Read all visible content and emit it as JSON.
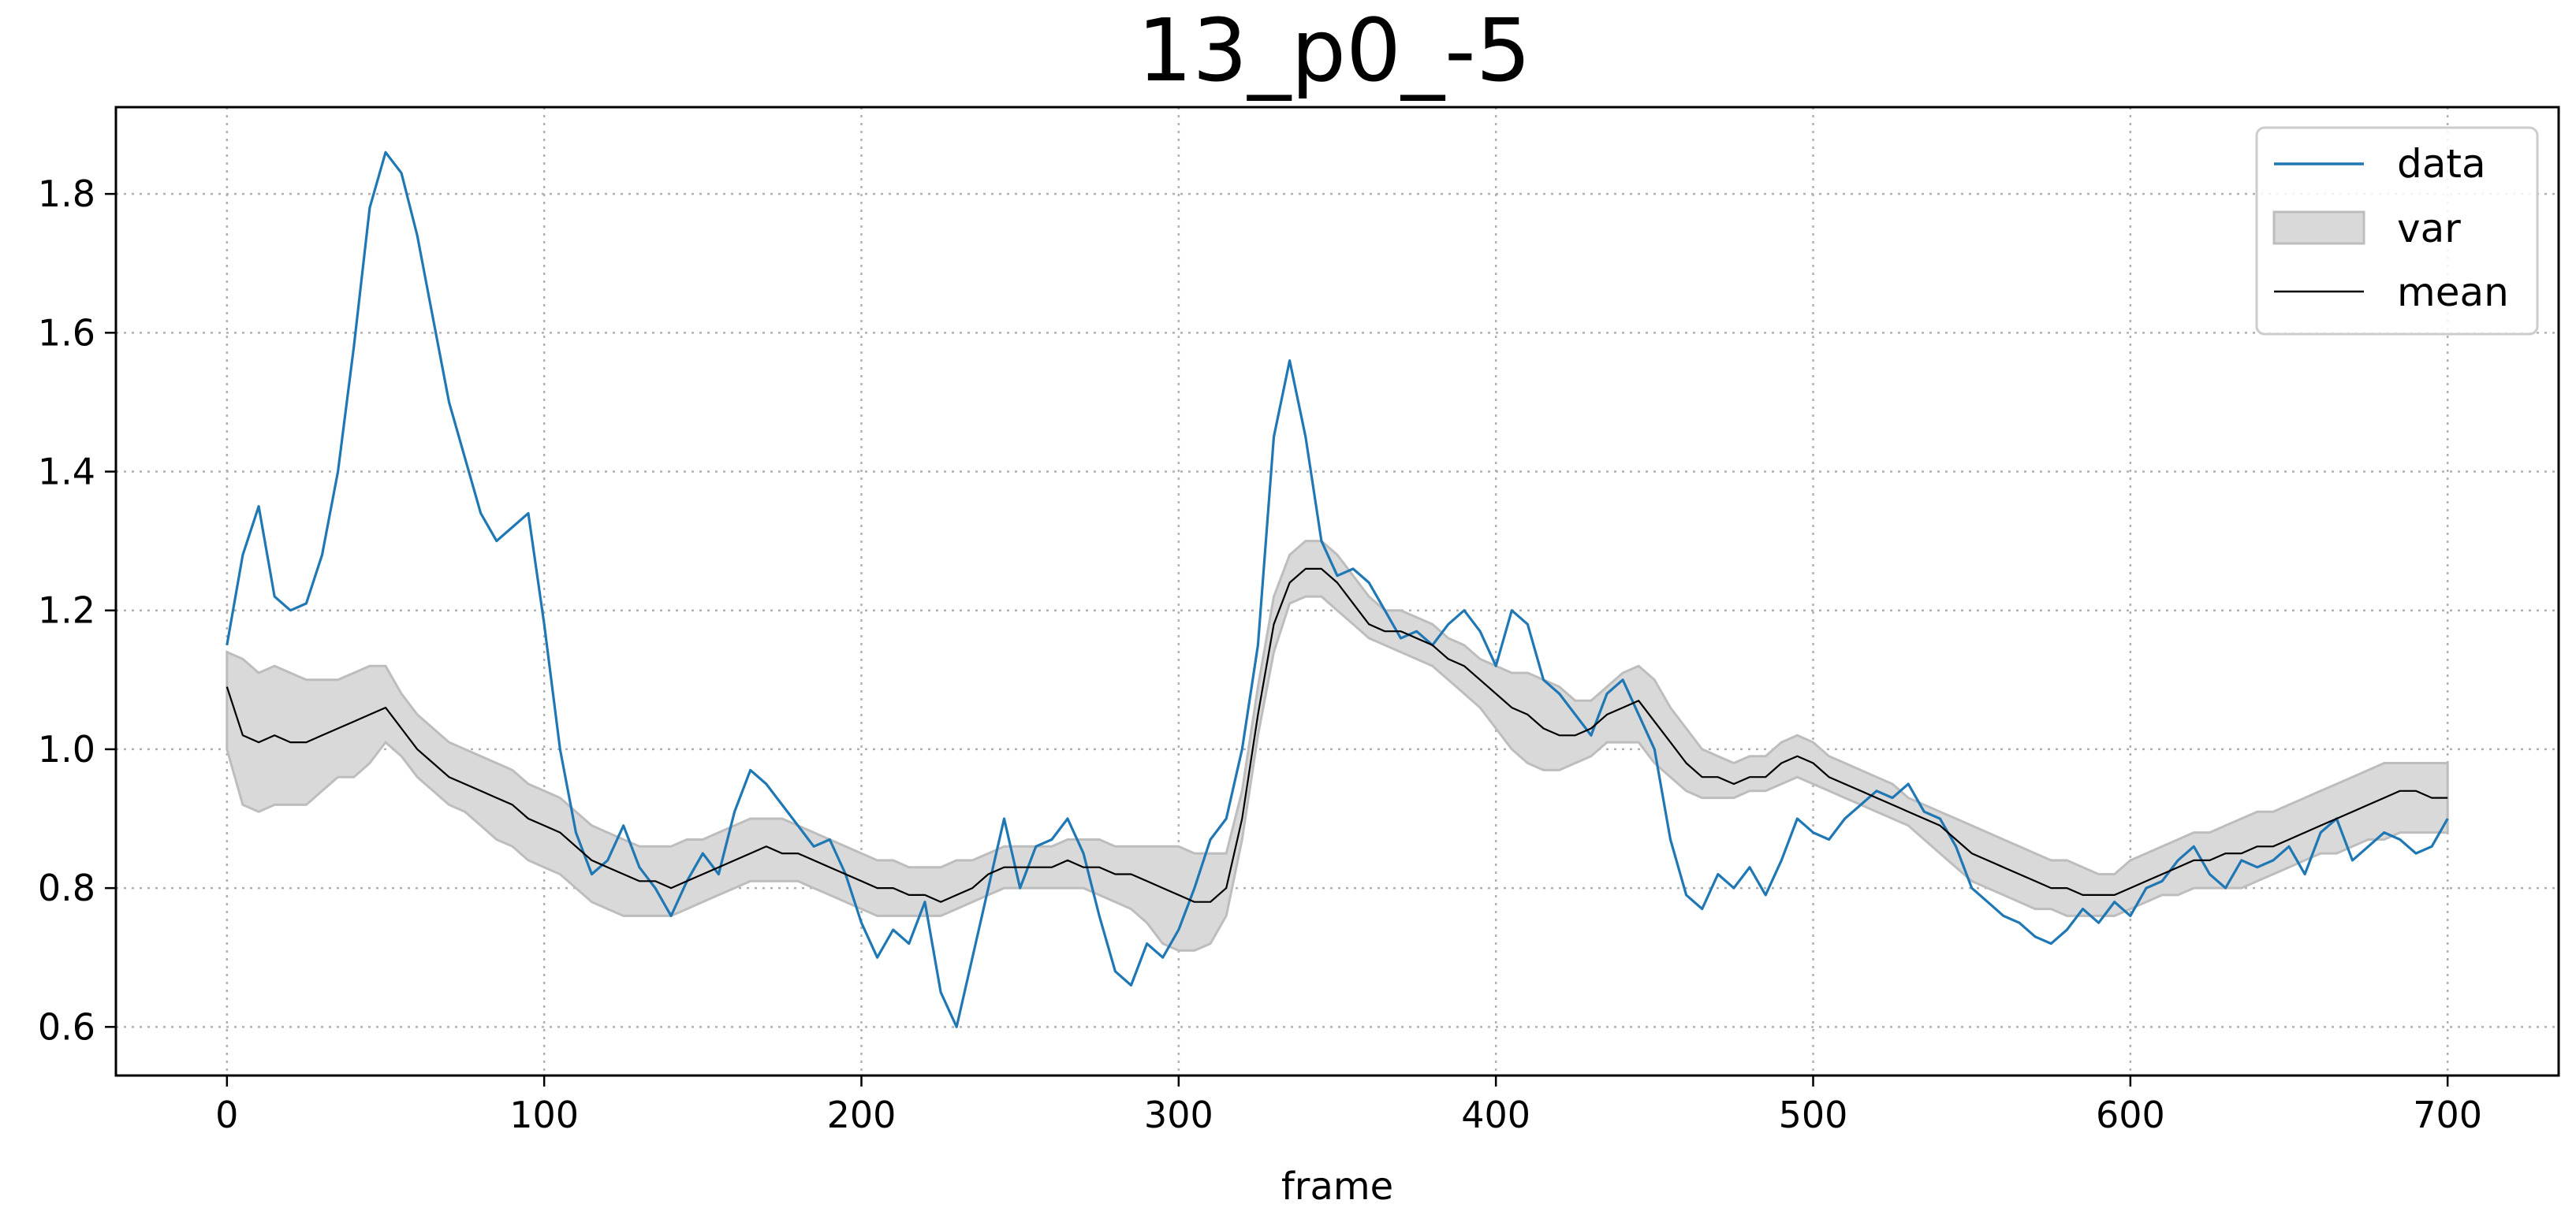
{
  "chart_data": {
    "type": "line",
    "title": "13_p0_-5",
    "xlabel": "frame",
    "ylabel": "",
    "xlim": [
      -35,
      735
    ],
    "ylim": [
      0.53,
      1.925
    ],
    "xticks": [
      0,
      100,
      200,
      300,
      400,
      500,
      600,
      700
    ],
    "yticks": [
      0.6,
      0.8,
      1.0,
      1.2,
      1.4,
      1.6,
      1.8
    ],
    "ytick_labels": [
      "0.6",
      "0.8",
      "1.0",
      "1.2",
      "1.4",
      "1.6",
      "1.8"
    ],
    "grid": true,
    "legend_position": "top-right",
    "legend": [
      "data",
      "var",
      "mean"
    ],
    "colors": {
      "data": "#1f77b4",
      "mean": "#000000",
      "var_fill": "#d9d9d9",
      "var_edge": "#bdbdbd"
    },
    "x": [
      0,
      5,
      10,
      15,
      20,
      25,
      30,
      35,
      40,
      45,
      50,
      55,
      60,
      65,
      70,
      75,
      80,
      85,
      90,
      95,
      100,
      105,
      110,
      115,
      120,
      125,
      130,
      135,
      140,
      145,
      150,
      155,
      160,
      165,
      170,
      175,
      180,
      185,
      190,
      195,
      200,
      205,
      210,
      215,
      220,
      225,
      230,
      235,
      240,
      245,
      250,
      255,
      260,
      265,
      270,
      275,
      280,
      285,
      290,
      295,
      300,
      305,
      310,
      315,
      320,
      325,
      330,
      335,
      340,
      345,
      350,
      355,
      360,
      365,
      370,
      375,
      380,
      385,
      390,
      395,
      400,
      405,
      410,
      415,
      420,
      425,
      430,
      435,
      440,
      445,
      450,
      455,
      460,
      465,
      470,
      475,
      480,
      485,
      490,
      495,
      500,
      505,
      510,
      515,
      520,
      525,
      530,
      535,
      540,
      545,
      550,
      555,
      560,
      565,
      570,
      575,
      580,
      585,
      590,
      595,
      600,
      605,
      610,
      615,
      620,
      625,
      630,
      635,
      640,
      645,
      650,
      655,
      660,
      665,
      670,
      675,
      680,
      685,
      690,
      695,
      700
    ],
    "series": [
      {
        "name": "data",
        "values": [
          1.15,
          1.28,
          1.35,
          1.22,
          1.2,
          1.21,
          1.28,
          1.4,
          1.58,
          1.78,
          1.86,
          1.83,
          1.74,
          1.62,
          1.5,
          1.42,
          1.34,
          1.3,
          1.32,
          1.34,
          1.18,
          1.0,
          0.88,
          0.82,
          0.84,
          0.89,
          0.83,
          0.8,
          0.76,
          0.81,
          0.85,
          0.82,
          0.91,
          0.97,
          0.95,
          0.92,
          0.89,
          0.86,
          0.87,
          0.82,
          0.75,
          0.7,
          0.74,
          0.72,
          0.78,
          0.65,
          0.6,
          0.7,
          0.8,
          0.9,
          0.8,
          0.86,
          0.87,
          0.9,
          0.85,
          0.76,
          0.68,
          0.66,
          0.72,
          0.7,
          0.74,
          0.8,
          0.87,
          0.9,
          1.0,
          1.15,
          1.45,
          1.56,
          1.45,
          1.3,
          1.25,
          1.26,
          1.24,
          1.2,
          1.16,
          1.17,
          1.15,
          1.18,
          1.2,
          1.17,
          1.12,
          1.2,
          1.18,
          1.1,
          1.08,
          1.05,
          1.02,
          1.08,
          1.1,
          1.05,
          1.0,
          0.87,
          0.79,
          0.77,
          0.82,
          0.8,
          0.83,
          0.79,
          0.84,
          0.9,
          0.88,
          0.87,
          0.9,
          0.92,
          0.94,
          0.93,
          0.95,
          0.91,
          0.9,
          0.86,
          0.8,
          0.78,
          0.76,
          0.75,
          0.73,
          0.72,
          0.74,
          0.77,
          0.75,
          0.78,
          0.76,
          0.8,
          0.81,
          0.84,
          0.86,
          0.82,
          0.8,
          0.84,
          0.83,
          0.84,
          0.86,
          0.82,
          0.88,
          0.9,
          0.84,
          0.86,
          0.88,
          0.87,
          0.85,
          0.86,
          0.9
        ]
      },
      {
        "name": "mean",
        "values": [
          1.09,
          1.02,
          1.01,
          1.02,
          1.01,
          1.01,
          1.02,
          1.03,
          1.04,
          1.05,
          1.06,
          1.03,
          1.0,
          0.98,
          0.96,
          0.95,
          0.94,
          0.93,
          0.92,
          0.9,
          0.89,
          0.88,
          0.86,
          0.84,
          0.83,
          0.82,
          0.81,
          0.81,
          0.8,
          0.81,
          0.82,
          0.83,
          0.84,
          0.85,
          0.86,
          0.85,
          0.85,
          0.84,
          0.83,
          0.82,
          0.81,
          0.8,
          0.8,
          0.79,
          0.79,
          0.78,
          0.79,
          0.8,
          0.82,
          0.83,
          0.83,
          0.83,
          0.83,
          0.84,
          0.83,
          0.83,
          0.82,
          0.82,
          0.81,
          0.8,
          0.79,
          0.78,
          0.78,
          0.8,
          0.9,
          1.05,
          1.18,
          1.24,
          1.26,
          1.26,
          1.24,
          1.21,
          1.18,
          1.17,
          1.17,
          1.16,
          1.15,
          1.13,
          1.12,
          1.1,
          1.08,
          1.06,
          1.05,
          1.03,
          1.02,
          1.02,
          1.03,
          1.05,
          1.06,
          1.07,
          1.04,
          1.01,
          0.98,
          0.96,
          0.96,
          0.95,
          0.96,
          0.96,
          0.98,
          0.99,
          0.98,
          0.96,
          0.95,
          0.94,
          0.93,
          0.92,
          0.91,
          0.9,
          0.89,
          0.87,
          0.85,
          0.84,
          0.83,
          0.82,
          0.81,
          0.8,
          0.8,
          0.79,
          0.79,
          0.79,
          0.8,
          0.81,
          0.82,
          0.83,
          0.84,
          0.84,
          0.85,
          0.85,
          0.86,
          0.86,
          0.87,
          0.88,
          0.89,
          0.9,
          0.91,
          0.92,
          0.93,
          0.94,
          0.94,
          0.93,
          0.93
        ]
      },
      {
        "name": "var",
        "lower": [
          1.0,
          0.92,
          0.91,
          0.92,
          0.92,
          0.92,
          0.94,
          0.96,
          0.96,
          0.98,
          1.01,
          0.99,
          0.96,
          0.94,
          0.92,
          0.91,
          0.89,
          0.87,
          0.86,
          0.84,
          0.83,
          0.82,
          0.8,
          0.78,
          0.77,
          0.76,
          0.76,
          0.76,
          0.76,
          0.77,
          0.78,
          0.79,
          0.8,
          0.81,
          0.81,
          0.81,
          0.81,
          0.8,
          0.79,
          0.78,
          0.77,
          0.76,
          0.76,
          0.76,
          0.76,
          0.76,
          0.77,
          0.78,
          0.79,
          0.8,
          0.8,
          0.8,
          0.8,
          0.8,
          0.8,
          0.79,
          0.78,
          0.77,
          0.75,
          0.72,
          0.71,
          0.71,
          0.72,
          0.76,
          0.87,
          1.02,
          1.14,
          1.21,
          1.22,
          1.22,
          1.2,
          1.18,
          1.16,
          1.15,
          1.14,
          1.13,
          1.12,
          1.1,
          1.08,
          1.06,
          1.03,
          1.0,
          0.98,
          0.97,
          0.97,
          0.98,
          0.99,
          1.01,
          1.01,
          1.01,
          0.98,
          0.96,
          0.94,
          0.93,
          0.93,
          0.93,
          0.94,
          0.94,
          0.95,
          0.96,
          0.95,
          0.94,
          0.93,
          0.92,
          0.91,
          0.9,
          0.89,
          0.87,
          0.85,
          0.83,
          0.81,
          0.8,
          0.79,
          0.78,
          0.77,
          0.77,
          0.76,
          0.76,
          0.76,
          0.76,
          0.77,
          0.78,
          0.79,
          0.79,
          0.8,
          0.8,
          0.8,
          0.8,
          0.81,
          0.82,
          0.83,
          0.84,
          0.85,
          0.85,
          0.86,
          0.87,
          0.87,
          0.88,
          0.88,
          0.88,
          0.88
        ],
        "upper": [
          1.14,
          1.13,
          1.11,
          1.12,
          1.11,
          1.1,
          1.1,
          1.1,
          1.11,
          1.12,
          1.12,
          1.08,
          1.05,
          1.03,
          1.01,
          1.0,
          0.99,
          0.98,
          0.97,
          0.95,
          0.94,
          0.93,
          0.91,
          0.89,
          0.88,
          0.87,
          0.86,
          0.86,
          0.86,
          0.87,
          0.87,
          0.88,
          0.89,
          0.9,
          0.9,
          0.9,
          0.89,
          0.88,
          0.87,
          0.86,
          0.85,
          0.84,
          0.84,
          0.83,
          0.83,
          0.83,
          0.84,
          0.84,
          0.85,
          0.86,
          0.86,
          0.86,
          0.86,
          0.87,
          0.87,
          0.87,
          0.86,
          0.86,
          0.86,
          0.86,
          0.86,
          0.85,
          0.85,
          0.85,
          0.94,
          1.09,
          1.22,
          1.28,
          1.3,
          1.3,
          1.28,
          1.25,
          1.22,
          1.2,
          1.2,
          1.19,
          1.18,
          1.16,
          1.15,
          1.13,
          1.12,
          1.11,
          1.11,
          1.1,
          1.09,
          1.07,
          1.07,
          1.09,
          1.11,
          1.12,
          1.1,
          1.06,
          1.03,
          1.0,
          0.99,
          0.98,
          0.99,
          0.99,
          1.01,
          1.02,
          1.01,
          0.99,
          0.98,
          0.97,
          0.96,
          0.95,
          0.93,
          0.92,
          0.91,
          0.9,
          0.89,
          0.88,
          0.87,
          0.86,
          0.85,
          0.84,
          0.84,
          0.83,
          0.82,
          0.82,
          0.84,
          0.85,
          0.86,
          0.87,
          0.88,
          0.88,
          0.89,
          0.9,
          0.91,
          0.91,
          0.92,
          0.93,
          0.94,
          0.95,
          0.96,
          0.97,
          0.98,
          0.98,
          0.98,
          0.98,
          0.98
        ]
      }
    ]
  }
}
